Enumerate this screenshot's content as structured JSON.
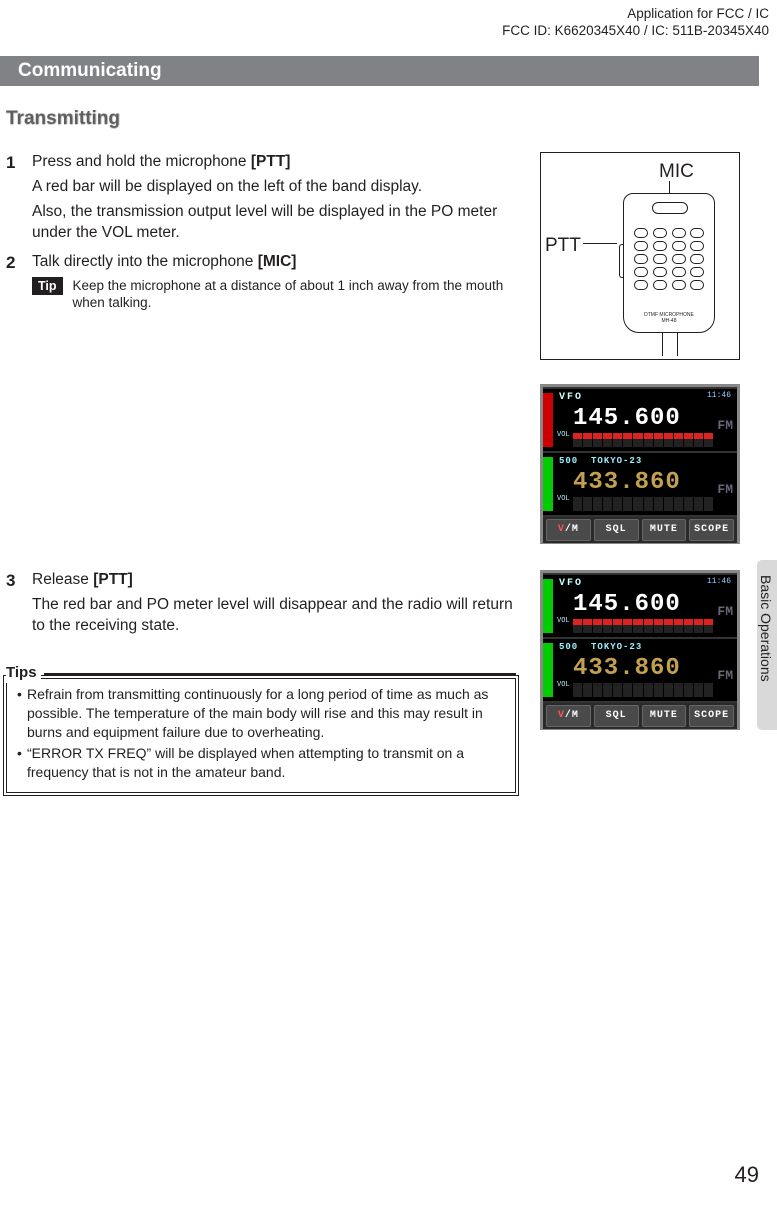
{
  "header": {
    "line1": "Application for FCC / IC",
    "line2": "FCC ID: K6620345X40 / IC: 511B-20345X40"
  },
  "section_title": "Communicating",
  "subheading": "Transmitting",
  "steps": {
    "s1": {
      "num": "1",
      "p1a": "Press and hold the microphone ",
      "p1b": "[PTT]",
      "p2": "A red bar will be displayed on the left of the band display.",
      "p3": "Also, the transmission output level will be displayed in the PO meter under the VOL meter."
    },
    "s2": {
      "num": "2",
      "p1a": "Talk directly into the microphone ",
      "p1b": "[MIC]",
      "tip_label": "Tip",
      "tip_text": "Keep the microphone at a distance of about 1 inch away from the mouth when talking."
    },
    "s3": {
      "num": "3",
      "p1a": "Release ",
      "p1b": "[PTT]",
      "p2": "The red bar and PO meter level will disappear and the radio will return to the receiving state."
    }
  },
  "tips": {
    "label": "Tips",
    "items": [
      "Refrain from transmitting continuously for a long period of time as much as possible. The temperature of the main body will rise and this may result in burns and equipment failure due to overheating.",
      "“ERROR TX FREQ” will be displayed when attempting to transmit on a frequency that is not in the amateur band."
    ]
  },
  "mic_diagram": {
    "mic_label": "MIC",
    "ptt_label": "PTT",
    "model_line1": "DTMF MICROPHONE",
    "model_line2": "MH-48"
  },
  "radio_display": {
    "time": "11:46",
    "top": {
      "mode": "VFO",
      "freq": "145.600",
      "fm": "FM",
      "vol": "VOL"
    },
    "bottom": {
      "mem": "500",
      "name_label": "TOKYO-23",
      "freq": "433.860",
      "fm": "FM",
      "vol": "VOL"
    },
    "softkeys": {
      "k1v": "V",
      "k1m": "/M",
      "k2": "SQL",
      "k3": "MUTE",
      "k4": "SCOPE"
    }
  },
  "side_tab": "Basic Operations",
  "page_number": "49"
}
